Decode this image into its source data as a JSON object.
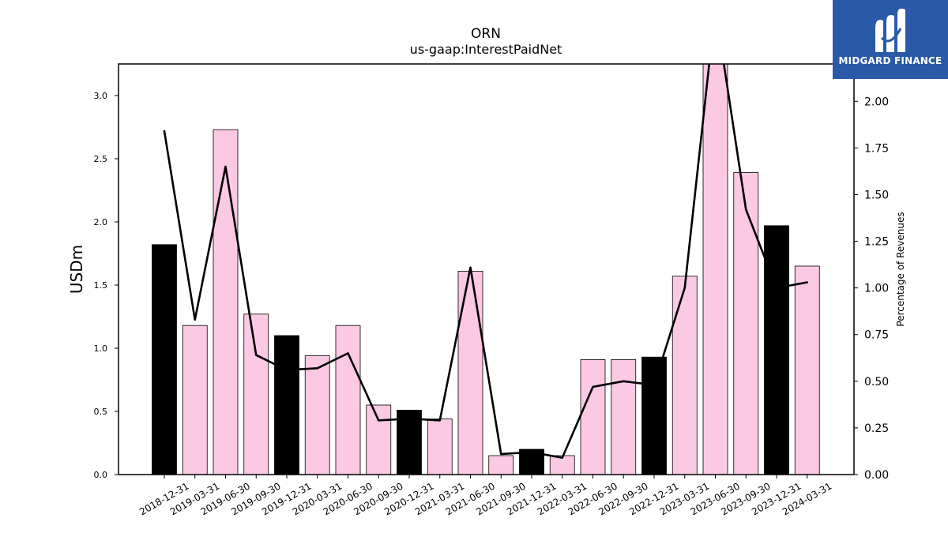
{
  "logo": {
    "text": "MIDGARD FINANCE",
    "icon": "midgard-m-logo-icon",
    "background": "#2a59a8"
  },
  "chart_data": {
    "type": "bar",
    "title": "ORN",
    "subtitle": "us-gaap:InterestPaidNet",
    "ylabel": "USDm",
    "y2label": "Percentage of Revenues",
    "ylim": [
      0,
      3.25
    ],
    "y2lim": [
      0,
      2.2
    ],
    "yticks": [
      "0.0",
      "0.5",
      "1.0",
      "1.5",
      "2.0",
      "2.5",
      "3.0"
    ],
    "y2ticks": [
      "0.00",
      "0.25",
      "0.50",
      "0.75",
      "1.00",
      "1.25",
      "1.50",
      "1.75",
      "2.00"
    ],
    "categories": [
      "2018-12-31",
      "2019-03-31",
      "2019-06-30",
      "2019-09-30",
      "2019-12-31",
      "2020-03-31",
      "2020-06-30",
      "2020-09-30",
      "2020-12-31",
      "2021-03-31",
      "2021-06-30",
      "2021-09-30",
      "2021-12-31",
      "2022-03-31",
      "2022-06-30",
      "2022-09-30",
      "2022-12-31",
      "2023-03-31",
      "2023-06-30",
      "2023-09-30",
      "2023-12-31",
      "2024-03-31"
    ],
    "series": [
      {
        "type": "bar",
        "values": [
          1.82,
          1.18,
          2.73,
          1.27,
          1.1,
          0.94,
          1.18,
          0.55,
          0.51,
          0.44,
          1.61,
          0.15,
          0.2,
          0.15,
          0.91,
          0.91,
          0.93,
          1.57,
          3.5,
          2.39,
          1.97,
          1.65
        ],
        "highlight_categories": [
          "2018-12-31",
          "2019-12-31",
          "2020-12-31",
          "2021-12-31",
          "2022-12-31",
          "2023-12-31"
        ],
        "color": "#fbc9e4",
        "highlight_color": "#000000"
      },
      {
        "type": "line",
        "axis": "right",
        "values": [
          1.84,
          0.83,
          1.65,
          0.64,
          0.56,
          0.57,
          0.65,
          0.29,
          0.3,
          0.29,
          1.11,
          0.11,
          0.12,
          0.09,
          0.47,
          0.5,
          0.48,
          1.0,
          2.5,
          1.42,
          1.0,
          1.03
        ],
        "color": "#000000"
      }
    ],
    "grid": false
  }
}
